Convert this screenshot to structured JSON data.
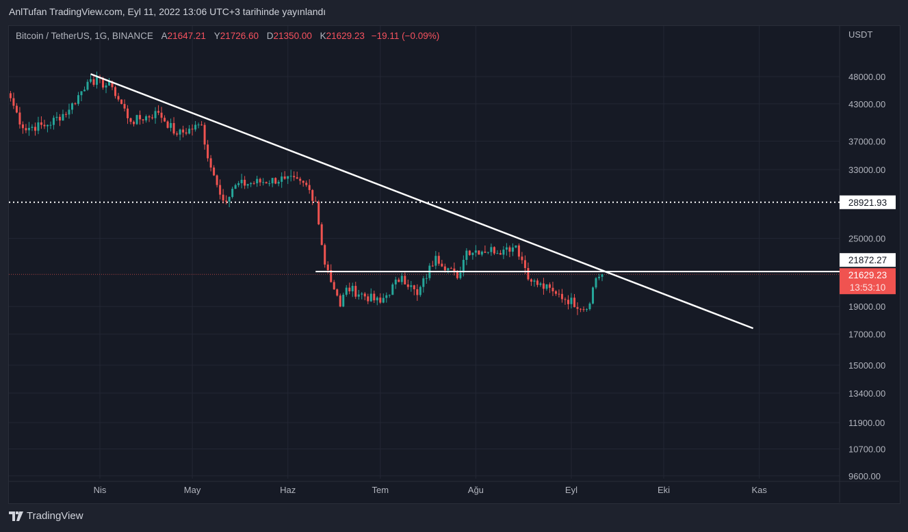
{
  "header": {
    "published": "AnlTufan TradingView.com, Eyl 11, 2022 13:06 UTC+3 tarihinde yayınlandı"
  },
  "legend": {
    "symbol": "Bitcoin / TetherUS, 1G, BINANCE",
    "o_label": "A",
    "o": "21647.21",
    "h_label": "Y",
    "h": "21726.60",
    "l_label": "D",
    "l": "21350.00",
    "c_label": "K",
    "c": "21629.23",
    "change": "−19.11 (−0.09%)"
  },
  "colors": {
    "up": "#26a69a",
    "down": "#ef5350",
    "line": "#ffffff",
    "grid": "#232734"
  },
  "footer": {
    "brand": "TradingView"
  },
  "chart_data": {
    "type": "candlestick",
    "scale": "log",
    "currency": "USDT",
    "ylim": [
      9300,
      58000
    ],
    "y_ticks": [
      48000,
      43000,
      37000,
      33000,
      25000,
      19000,
      17000,
      15000,
      13400,
      11900,
      10700,
      9600
    ],
    "y_tick_labels": [
      "48000.00",
      "43000.00",
      "37000.00",
      "33000.00",
      "25000.00",
      "19000.00",
      "17000.00",
      "15000.00",
      "13400.00",
      "11900.00",
      "10700.00",
      "9600.00"
    ],
    "x_ticks": [
      {
        "day": 29,
        "label": "Nis"
      },
      {
        "day": 59,
        "label": "May"
      },
      {
        "day": 90,
        "label": "Haz"
      },
      {
        "day": 120,
        "label": "Tem"
      },
      {
        "day": 151,
        "label": "Ağu"
      },
      {
        "day": 182,
        "label": "Eyl"
      },
      {
        "day": 212,
        "label": "Eki"
      },
      {
        "day": 243,
        "label": "Kas"
      }
    ],
    "x_unit": "days since Mar 3 2022",
    "close_waypoints": [
      [
        0,
        44000
      ],
      [
        4,
        39000
      ],
      [
        12,
        39500
      ],
      [
        19,
        42000
      ],
      [
        25,
        47000
      ],
      [
        26,
        47500
      ],
      [
        33,
        46000
      ],
      [
        39,
        40000
      ],
      [
        48,
        41500
      ],
      [
        54,
        38000
      ],
      [
        62,
        39500
      ],
      [
        63,
        36500
      ],
      [
        67,
        31000
      ],
      [
        70,
        29000
      ],
      [
        73,
        31000
      ],
      [
        89,
        31800
      ],
      [
        96,
        31000
      ],
      [
        99,
        29000
      ],
      [
        102,
        22500
      ],
      [
        103,
        22000
      ],
      [
        107,
        19000
      ],
      [
        109,
        20500
      ],
      [
        120,
        19300
      ],
      [
        127,
        21500
      ],
      [
        132,
        19900
      ],
      [
        138,
        23300
      ],
      [
        145,
        21300
      ],
      [
        148,
        23800
      ],
      [
        160,
        23900
      ],
      [
        164,
        24300
      ],
      [
        169,
        21000
      ],
      [
        176,
        20200
      ],
      [
        177,
        20000
      ],
      [
        187,
        18800
      ],
      [
        190,
        21300
      ],
      [
        192,
        21629.23
      ]
    ],
    "trendline": {
      "from": [
        26,
        48500
      ],
      "to": [
        241,
        17400
      ]
    },
    "hline": {
      "from_day": 99,
      "price": 21872.27,
      "label": "21872.27"
    },
    "dotted_level": {
      "price": 28921.93,
      "label": "28921.93"
    },
    "last_price": {
      "price": 21629.23,
      "label": "21629.23",
      "countdown": "13:53:10"
    }
  }
}
